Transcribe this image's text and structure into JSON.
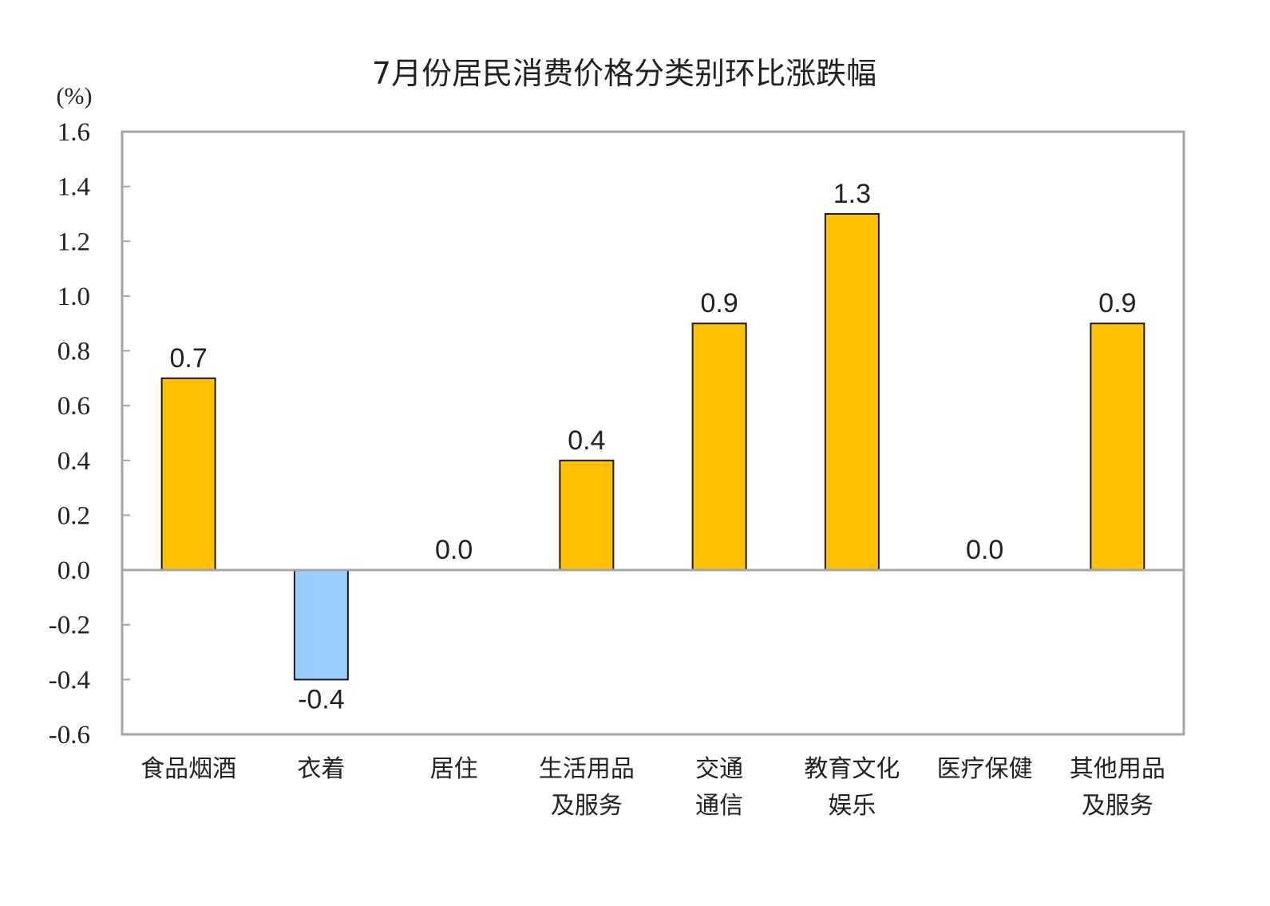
{
  "chart_data": {
    "type": "bar",
    "title": "7月份居民消费价格分类别环比涨跌幅",
    "ylabel": "(%)",
    "ylim": [
      -0.6,
      1.6
    ],
    "ytick_step": 0.2,
    "yticks": [
      "1.6",
      "1.4",
      "1.2",
      "1.0",
      "0.8",
      "0.6",
      "0.4",
      "0.2",
      "0.0",
      "-0.2",
      "-0.4",
      "-0.6"
    ],
    "categories": [
      [
        "食品烟酒"
      ],
      [
        "衣着"
      ],
      [
        "居住"
      ],
      [
        "生活用品",
        "及服务"
      ],
      [
        "交通",
        "通信"
      ],
      [
        "教育文化",
        "娱乐"
      ],
      [
        "医疗保健"
      ],
      [
        "其他用品",
        "及服务"
      ]
    ],
    "values": [
      0.7,
      -0.4,
      0.0,
      0.4,
      0.9,
      1.3,
      0.0,
      0.9
    ],
    "data_labels": [
      "0.7",
      "-0.4",
      "0.0",
      "0.4",
      "0.9",
      "1.3",
      "0.0",
      "0.9"
    ],
    "grid": false,
    "colors": {
      "positive": "#FFC000",
      "negative": "#99CCFF",
      "bar_border": "#1a1a1a",
      "axis": "#A6A6A6"
    }
  }
}
